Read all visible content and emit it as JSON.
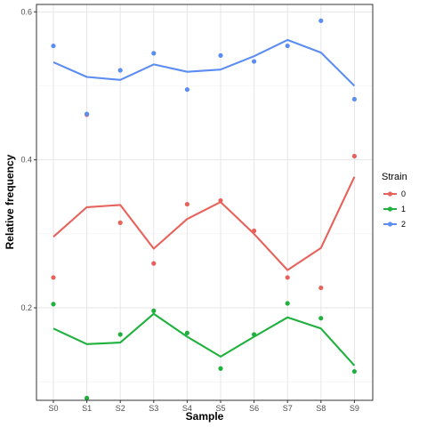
{
  "chart_data": {
    "type": "line",
    "xlabel": "Sample",
    "ylabel": "Relative frequency",
    "categories": [
      "S0",
      "S1",
      "S2",
      "S3",
      "S4",
      "S5",
      "S6",
      "S7",
      "S8",
      "S9"
    ],
    "ylim": [
      0.075,
      0.61
    ],
    "yticks": [
      0.2,
      0.4,
      0.6
    ],
    "yticks_text": [
      "0.2",
      "0.4",
      "0.6"
    ],
    "grid": true,
    "legend": {
      "title": "Strain",
      "position": "right"
    },
    "series": [
      {
        "name": "0",
        "color": "#e8625c",
        "points": [
          0.241,
          0.461,
          0.315,
          0.26,
          0.34,
          0.345,
          0.304,
          0.241,
          0.227,
          0.405
        ],
        "line": [
          0.296,
          0.336,
          0.339,
          0.28,
          0.32,
          0.343,
          0.3,
          0.251,
          0.281,
          0.377
        ]
      },
      {
        "name": "1",
        "color": "#1fb13d",
        "points": [
          0.205,
          0.078,
          0.164,
          0.196,
          0.166,
          0.118,
          0.164,
          0.206,
          0.186,
          0.114
        ],
        "line": [
          0.172,
          0.151,
          0.153,
          0.192,
          0.161,
          0.134,
          0.161,
          0.187,
          0.172,
          0.122
        ]
      },
      {
        "name": "2",
        "color": "#5b8df2",
        "points": [
          0.554,
          0.462,
          0.521,
          0.544,
          0.495,
          0.541,
          0.533,
          0.554,
          0.588,
          0.482
        ],
        "line": [
          0.532,
          0.512,
          0.508,
          0.529,
          0.519,
          0.522,
          0.54,
          0.562,
          0.545,
          0.5
        ]
      }
    ]
  }
}
